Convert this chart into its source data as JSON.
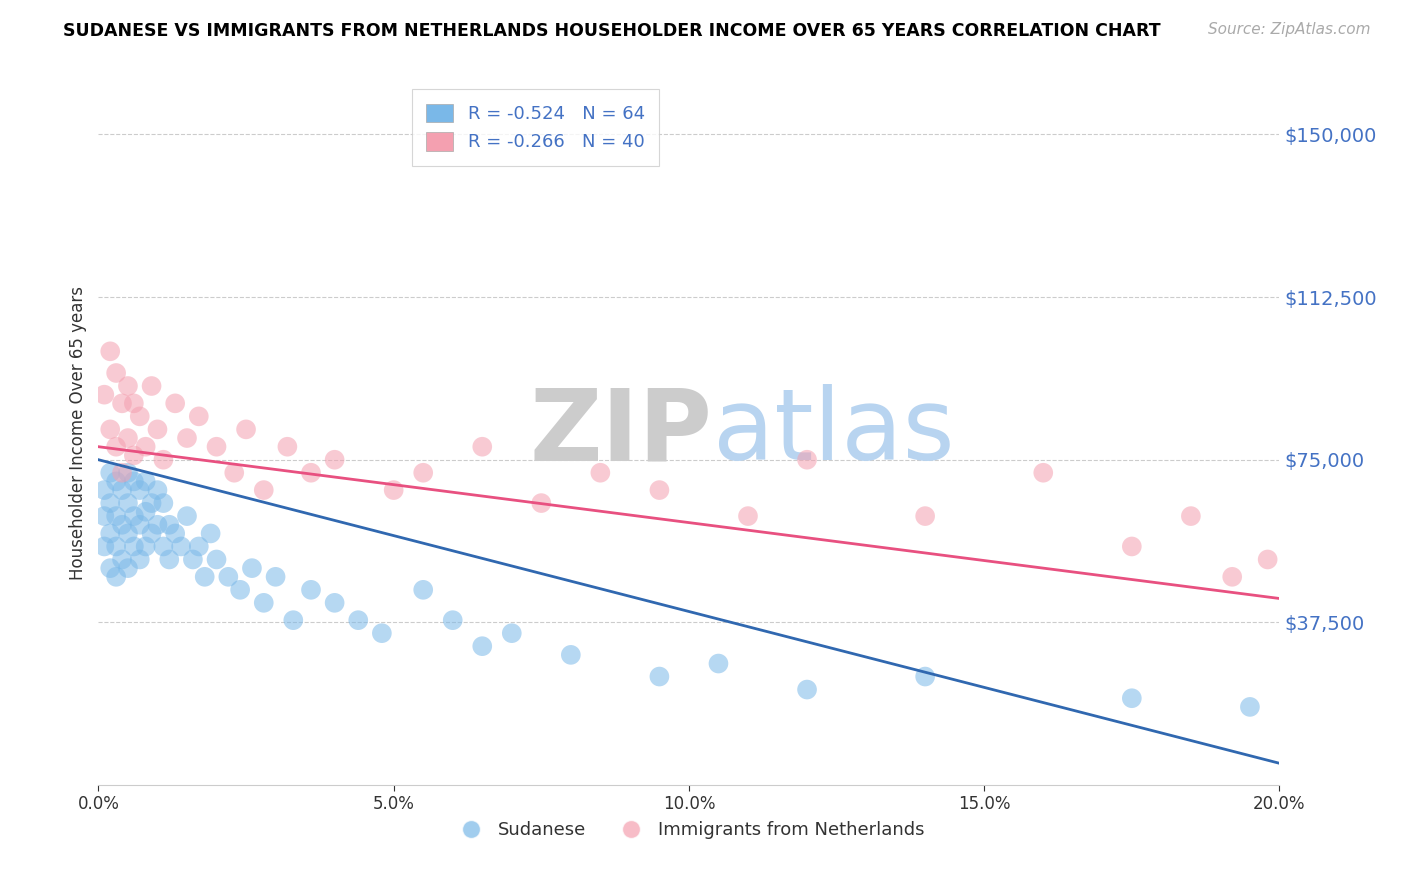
{
  "title": "SUDANESE VS IMMIGRANTS FROM NETHERLANDS HOUSEHOLDER INCOME OVER 65 YEARS CORRELATION CHART",
  "source": "Source: ZipAtlas.com",
  "ylabel": "Householder Income Over 65 years",
  "xlim": [
    0.0,
    0.2
  ],
  "ylim": [
    0,
    162500
  ],
  "yticks": [
    37500,
    75000,
    112500,
    150000
  ],
  "ytick_labels": [
    "$37,500",
    "$75,000",
    "$112,500",
    "$150,000"
  ],
  "xticks": [
    0.0,
    0.05,
    0.1,
    0.15,
    0.2
  ],
  "xtick_labels": [
    "0.0%",
    "5.0%",
    "10.0%",
    "15.0%",
    "20.0%"
  ],
  "blue_color": "#7ab8e8",
  "pink_color": "#f4a0b0",
  "blue_line_color": "#3068b0",
  "pink_line_color": "#e85080",
  "legend_blue_label": "R = -0.524   N = 64",
  "legend_pink_label": "R = -0.266   N = 40",
  "watermark_zip": "ZIP",
  "watermark_atlas": "atlas",
  "legend1_sudanese": "Sudanese",
  "legend1_netherlands": "Immigrants from Netherlands",
  "sudanese_x": [
    0.001,
    0.001,
    0.001,
    0.002,
    0.002,
    0.002,
    0.002,
    0.003,
    0.003,
    0.003,
    0.003,
    0.004,
    0.004,
    0.004,
    0.005,
    0.005,
    0.005,
    0.005,
    0.006,
    0.006,
    0.006,
    0.007,
    0.007,
    0.007,
    0.008,
    0.008,
    0.008,
    0.009,
    0.009,
    0.01,
    0.01,
    0.011,
    0.011,
    0.012,
    0.012,
    0.013,
    0.014,
    0.015,
    0.016,
    0.017,
    0.018,
    0.019,
    0.02,
    0.022,
    0.024,
    0.026,
    0.028,
    0.03,
    0.033,
    0.036,
    0.04,
    0.044,
    0.048,
    0.055,
    0.06,
    0.065,
    0.07,
    0.08,
    0.095,
    0.105,
    0.12,
    0.14,
    0.175,
    0.195
  ],
  "sudanese_y": [
    68000,
    62000,
    55000,
    72000,
    65000,
    58000,
    50000,
    70000,
    62000,
    55000,
    48000,
    68000,
    60000,
    52000,
    72000,
    65000,
    58000,
    50000,
    70000,
    62000,
    55000,
    68000,
    60000,
    52000,
    70000,
    63000,
    55000,
    65000,
    58000,
    68000,
    60000,
    65000,
    55000,
    60000,
    52000,
    58000,
    55000,
    62000,
    52000,
    55000,
    48000,
    58000,
    52000,
    48000,
    45000,
    50000,
    42000,
    48000,
    38000,
    45000,
    42000,
    38000,
    35000,
    45000,
    38000,
    32000,
    35000,
    30000,
    25000,
    28000,
    22000,
    25000,
    20000,
    18000
  ],
  "netherlands_x": [
    0.001,
    0.002,
    0.002,
    0.003,
    0.003,
    0.004,
    0.004,
    0.005,
    0.005,
    0.006,
    0.006,
    0.007,
    0.008,
    0.009,
    0.01,
    0.011,
    0.013,
    0.015,
    0.017,
    0.02,
    0.023,
    0.025,
    0.028,
    0.032,
    0.036,
    0.04,
    0.05,
    0.055,
    0.065,
    0.075,
    0.085,
    0.095,
    0.11,
    0.12,
    0.14,
    0.16,
    0.175,
    0.185,
    0.192,
    0.198
  ],
  "netherlands_y": [
    90000,
    100000,
    82000,
    95000,
    78000,
    88000,
    72000,
    92000,
    80000,
    88000,
    76000,
    85000,
    78000,
    92000,
    82000,
    75000,
    88000,
    80000,
    85000,
    78000,
    72000,
    82000,
    68000,
    78000,
    72000,
    75000,
    68000,
    72000,
    78000,
    65000,
    72000,
    68000,
    62000,
    75000,
    62000,
    72000,
    55000,
    62000,
    48000,
    52000
  ]
}
